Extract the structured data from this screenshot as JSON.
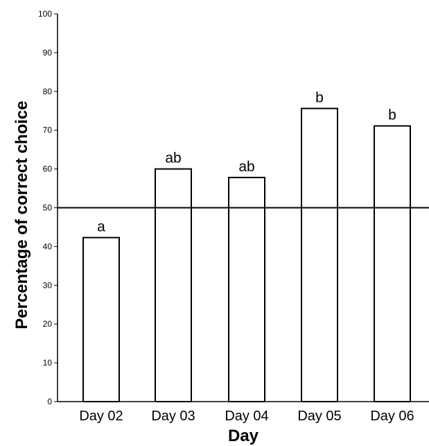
{
  "chart_data": {
    "type": "bar",
    "title": "",
    "xlabel": "Day",
    "ylabel": "Percentage of correct choice",
    "categories": [
      "Day 02",
      "Day 03",
      "Day 04",
      "Day 05",
      "Day 06"
    ],
    "values": [
      42.3,
      60.0,
      57.8,
      75.6,
      71.1
    ],
    "bar_labels": [
      "a",
      "ab",
      "ab",
      "b",
      "b"
    ],
    "ylim": [
      0,
      100
    ],
    "yticks": [
      0,
      10,
      20,
      30,
      40,
      50,
      60,
      70,
      80,
      90,
      100
    ],
    "reference_line": 50,
    "grid": false,
    "legend": "none",
    "colors": {
      "bar_fill": "#ffffff",
      "bar_stroke": "#000000",
      "axis": "#000000"
    }
  }
}
